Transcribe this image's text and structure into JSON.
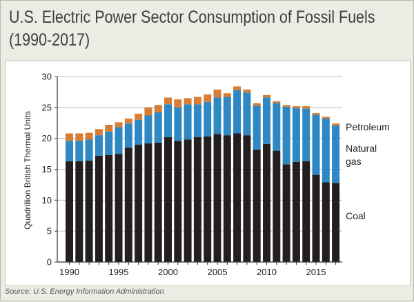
{
  "title": {
    "line1": "U.S. Electric Power Sector Consumption of Fossil Fuels",
    "line2": "(1990-2017)"
  },
  "source": "Source: U.S. Energy Information Administration",
  "colors": {
    "coal": "#231f20",
    "natural_gas": "#2d88c3",
    "petroleum": "#d87d35",
    "grid": "#bdbdbd",
    "axis": "#333333"
  },
  "chart_data": {
    "type": "bar",
    "stacked": true,
    "title": "U.S. Electric Power Sector Consumption of Fossil Fuels (1990-2017)",
    "xlabel": "",
    "ylabel": "Quadrillion British Thermal Units",
    "ylim": [
      0,
      30
    ],
    "yticks": [
      0,
      5,
      10,
      15,
      20,
      25,
      30
    ],
    "xtick_labels": [
      "1990",
      "1995",
      "2000",
      "2005",
      "2010",
      "2015"
    ],
    "grid": true,
    "categories": [
      "1990",
      "1991",
      "1992",
      "1993",
      "1994",
      "1995",
      "1996",
      "1997",
      "1998",
      "1999",
      "2000",
      "2001",
      "2002",
      "2003",
      "2004",
      "2005",
      "2006",
      "2007",
      "2008",
      "2009",
      "2010",
      "2011",
      "2012",
      "2013",
      "2014",
      "2015",
      "2016",
      "2017"
    ],
    "series": [
      {
        "name": "Coal",
        "legend": "Coal",
        "values": [
          16.3,
          16.3,
          16.4,
          17.2,
          17.3,
          17.5,
          18.5,
          19.0,
          19.2,
          19.3,
          20.2,
          19.6,
          19.8,
          20.2,
          20.3,
          20.7,
          20.5,
          20.8,
          20.5,
          18.2,
          19.1,
          18.0,
          15.8,
          16.2,
          16.3,
          14.1,
          12.9,
          12.8
        ]
      },
      {
        "name": "Natural gas",
        "legend": [
          "Natural",
          "gas"
        ],
        "values": [
          3.3,
          3.3,
          3.4,
          3.3,
          3.8,
          4.3,
          3.9,
          4.0,
          4.5,
          4.9,
          5.3,
          5.4,
          5.7,
          5.3,
          5.6,
          5.9,
          6.2,
          7.0,
          6.9,
          7.1,
          7.5,
          7.7,
          9.3,
          8.7,
          8.5,
          9.7,
          10.3,
          9.3
        ]
      },
      {
        "name": "Petroleum",
        "legend": "Petroleum",
        "values": [
          1.2,
          1.2,
          1.1,
          1.0,
          1.1,
          0.8,
          0.8,
          1.0,
          1.3,
          1.2,
          1.1,
          1.3,
          1.0,
          1.2,
          1.2,
          1.3,
          0.6,
          0.6,
          0.5,
          0.4,
          0.4,
          0.3,
          0.3,
          0.3,
          0.4,
          0.3,
          0.3,
          0.3
        ]
      }
    ]
  }
}
